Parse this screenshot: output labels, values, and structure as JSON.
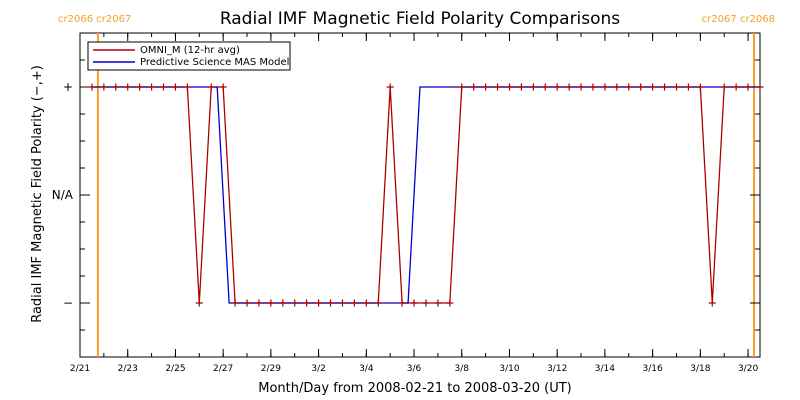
{
  "chart_data": {
    "type": "line",
    "title": "Radial IMF Magnetic Field Polarity Comparisons",
    "xlabel": "Month/Day from 2008-02-21 to 2008-03-20 (UT)",
    "ylabel": "Radial IMF Magnetic Field Polarity (−,+)",
    "xlim": [
      "2008-02-21T00:00",
      "2008-03-20T12:00"
    ],
    "ylim": [
      -1.5,
      1.5
    ],
    "x_ticks": [
      "2/21",
      "2/23",
      "2/25",
      "2/27",
      "2/29",
      "3/2",
      "3/4",
      "3/6",
      "3/8",
      "3/10",
      "3/12",
      "3/14",
      "3/16",
      "3/18",
      "3/20"
    ],
    "y_ticks": [
      {
        "value": 1,
        "label": "+"
      },
      {
        "value": 0,
        "label": "N/A"
      },
      {
        "value": -1,
        "label": "−"
      }
    ],
    "grid": false,
    "legend_position": "top-left",
    "carrington_markers": [
      {
        "date": "2008-02-21T18:00",
        "label": "cr2066 cr2067",
        "color": "#f5a025"
      },
      {
        "date": "2008-03-20T06:00",
        "label": "cr2067 cr2068",
        "color": "#f5a025"
      }
    ],
    "series": [
      {
        "name": "OMNI_M (12-hr avg)",
        "color": "#b00000",
        "marker": "plus",
        "points": [
          [
            "2008-02-21T12:00",
            1
          ],
          [
            "2008-02-22T00:00",
            1
          ],
          [
            "2008-02-22T12:00",
            1
          ],
          [
            "2008-02-23T00:00",
            1
          ],
          [
            "2008-02-23T12:00",
            1
          ],
          [
            "2008-02-24T00:00",
            1
          ],
          [
            "2008-02-24T12:00",
            1
          ],
          [
            "2008-02-25T00:00",
            1
          ],
          [
            "2008-02-25T12:00",
            1
          ],
          [
            "2008-02-26T00:00",
            -1
          ],
          [
            "2008-02-26T12:00",
            1
          ],
          [
            "2008-02-27T00:00",
            1
          ],
          [
            "2008-02-27T12:00",
            -1
          ],
          [
            "2008-02-28T00:00",
            -1
          ],
          [
            "2008-02-28T12:00",
            -1
          ],
          [
            "2008-02-29T00:00",
            -1
          ],
          [
            "2008-02-29T12:00",
            -1
          ],
          [
            "2008-03-01T00:00",
            -1
          ],
          [
            "2008-03-01T12:00",
            -1
          ],
          [
            "2008-03-02T00:00",
            -1
          ],
          [
            "2008-03-02T12:00",
            -1
          ],
          [
            "2008-03-03T00:00",
            -1
          ],
          [
            "2008-03-03T12:00",
            -1
          ],
          [
            "2008-03-04T00:00",
            -1
          ],
          [
            "2008-03-04T12:00",
            -1
          ],
          [
            "2008-03-05T00:00",
            1
          ],
          [
            "2008-03-05T12:00",
            -1
          ],
          [
            "2008-03-06T00:00",
            -1
          ],
          [
            "2008-03-06T12:00",
            -1
          ],
          [
            "2008-03-07T00:00",
            -1
          ],
          [
            "2008-03-07T12:00",
            -1
          ],
          [
            "2008-03-08T00:00",
            1
          ],
          [
            "2008-03-08T12:00",
            1
          ],
          [
            "2008-03-09T00:00",
            1
          ],
          [
            "2008-03-09T12:00",
            1
          ],
          [
            "2008-03-10T00:00",
            1
          ],
          [
            "2008-03-10T12:00",
            1
          ],
          [
            "2008-03-11T00:00",
            1
          ],
          [
            "2008-03-11T12:00",
            1
          ],
          [
            "2008-03-12T00:00",
            1
          ],
          [
            "2008-03-12T12:00",
            1
          ],
          [
            "2008-03-13T00:00",
            1
          ],
          [
            "2008-03-13T12:00",
            1
          ],
          [
            "2008-03-14T00:00",
            1
          ],
          [
            "2008-03-14T12:00",
            1
          ],
          [
            "2008-03-15T00:00",
            1
          ],
          [
            "2008-03-15T12:00",
            1
          ],
          [
            "2008-03-16T00:00",
            1
          ],
          [
            "2008-03-16T12:00",
            1
          ],
          [
            "2008-03-17T00:00",
            1
          ],
          [
            "2008-03-17T12:00",
            1
          ],
          [
            "2008-03-18T00:00",
            1
          ],
          [
            "2008-03-18T12:00",
            -1
          ],
          [
            "2008-03-19T00:00",
            1
          ],
          [
            "2008-03-19T12:00",
            1
          ],
          [
            "2008-03-20T00:00",
            1
          ],
          [
            "2008-03-20T12:00",
            1
          ]
        ]
      },
      {
        "name": "Predictive Science MAS Model",
        "color": "#0000cc",
        "marker": "none",
        "points": [
          [
            "2008-02-21T12:00",
            1
          ],
          [
            "2008-02-26T18:00",
            1
          ],
          [
            "2008-02-27T06:00",
            -1
          ],
          [
            "2008-03-05T18:00",
            -1
          ],
          [
            "2008-03-06T06:00",
            1
          ],
          [
            "2008-03-20T12:00",
            1
          ]
        ]
      }
    ]
  }
}
